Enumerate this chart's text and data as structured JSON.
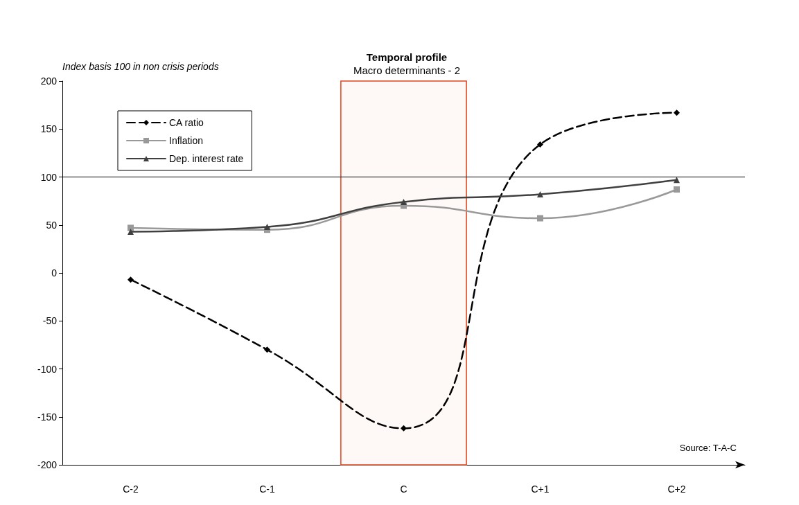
{
  "chart_data": {
    "type": "line",
    "title": "Temporal profile",
    "subtitle": "Macro determinants - 2",
    "ylabel": "Index basis 100 in non crisis periods",
    "categories": [
      "C-2",
      "C-1",
      "C",
      "C+1",
      "C+2"
    ],
    "series": [
      {
        "name": "CA ratio",
        "color": "#000000",
        "marker": "diamond",
        "line_style": "dashed",
        "values": [
          -7,
          -80,
          -162,
          134,
          167
        ]
      },
      {
        "name": "Inflation",
        "color": "#999999",
        "marker": "square",
        "line_style": "solid",
        "values": [
          47,
          45,
          70,
          57,
          87
        ]
      },
      {
        "name": "Dep. interest rate",
        "color": "#404040",
        "marker": "triangle",
        "line_style": "solid",
        "values": [
          43,
          48,
          74,
          82,
          97
        ]
      }
    ],
    "ylim": [
      -200,
      200
    ],
    "yticks": [
      -200,
      -150,
      -100,
      -50,
      0,
      50,
      100,
      150,
      200
    ],
    "ref_lines": [
      {
        "axis": "y",
        "value": 100,
        "label": null,
        "color": "#000000"
      }
    ],
    "bands": [
      {
        "axis": "x",
        "from": "C",
        "to": "C",
        "label": null,
        "color": "#e0441c"
      }
    ],
    "grid": false,
    "legend": "top left",
    "annotations": [
      "Source: T-A-C"
    ]
  }
}
